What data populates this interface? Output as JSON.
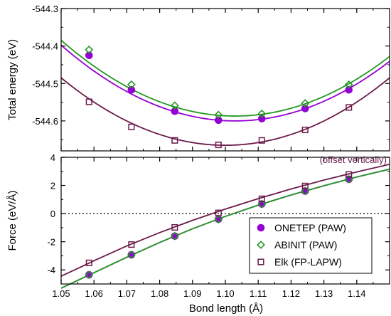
{
  "colors": {
    "onetep": "#9400d3",
    "abinit": "#229922",
    "elk": "#6b1a4a",
    "frame": "#000000",
    "zero_line": "#000000"
  },
  "chart_data": [
    {
      "type": "line",
      "panel": "top",
      "ylabel": "Total energy (eV)",
      "xlim": [
        1.05,
        1.15
      ],
      "ylim": [
        -544.68,
        -544.3
      ],
      "yticks": [
        -544.3,
        -544.4,
        -544.5,
        -544.6
      ],
      "ytick_labels": [
        "-544.3",
        "-544.4",
        "-544.5",
        "-544.6"
      ],
      "annotation": "(offset vertically)",
      "series": [
        {
          "key": "onetep",
          "marker": "filled-circle",
          "x": [
            1.0585,
            1.0714,
            1.0846,
            1.0979,
            1.1111,
            1.1243,
            1.1376
          ],
          "y": [
            -544.425,
            -544.517,
            -544.574,
            -544.598,
            -544.594,
            -544.567,
            -544.517
          ],
          "fit": {
            "min_x": 1.103,
            "min_y": -544.6,
            "k": 72
          }
        },
        {
          "key": "abinit",
          "marker": "open-diamond",
          "x": [
            1.0585,
            1.0714,
            1.0846,
            1.0979,
            1.1111,
            1.1243,
            1.1376
          ],
          "y": [
            -544.41,
            -544.503,
            -544.559,
            -544.584,
            -544.581,
            -544.553,
            -544.503
          ],
          "fit": {
            "min_x": 1.103,
            "min_y": -544.587,
            "k": 72
          }
        },
        {
          "key": "elk",
          "marker": "open-square",
          "x": [
            1.0585,
            1.0714,
            1.0846,
            1.0979,
            1.1111,
            1.1243,
            1.1376
          ],
          "y": [
            -544.549,
            -544.616,
            -544.652,
            -544.664,
            -544.652,
            -544.624,
            -544.564
          ],
          "fit": {
            "min_x": 1.1,
            "min_y": -544.665,
            "k": 72
          }
        }
      ]
    },
    {
      "type": "line",
      "panel": "bottom",
      "xlabel": "Bond length (Å)",
      "ylabel": "Force (eV/Å)",
      "xlim": [
        1.05,
        1.15
      ],
      "ylim": [
        -5,
        4
      ],
      "xticks": [
        1.05,
        1.06,
        1.07,
        1.08,
        1.09,
        1.1,
        1.11,
        1.12,
        1.13,
        1.14
      ],
      "xtick_labels": [
        "1.05",
        "1.06",
        "1.07",
        "1.08",
        "1.09",
        "1.10",
        "1.11",
        "1.12",
        "1.13",
        "1.14"
      ],
      "yticks": [
        4,
        2,
        0,
        -2,
        -4
      ],
      "ytick_labels": [
        "4",
        "2",
        "0",
        "-2",
        "-4"
      ],
      "zero_line": true,
      "legend_position": "lower-right",
      "series": [
        {
          "key": "onetep",
          "name": "ONETEP (PAW)",
          "marker": "filled-circle",
          "x": [
            1.0585,
            1.0714,
            1.0846,
            1.0979,
            1.1111,
            1.1243,
            1.1376
          ],
          "y": [
            -4.35,
            -2.93,
            -1.6,
            -0.4,
            0.68,
            1.6,
            2.44
          ],
          "curve": [
            [
              1.05,
              -5.3
            ],
            [
              1.06,
              -4.2
            ],
            [
              1.07,
              -3.1
            ],
            [
              1.08,
              -2.05
            ],
            [
              1.09,
              -1.08
            ],
            [
              1.1,
              -0.2
            ],
            [
              1.11,
              0.6
            ],
            [
              1.12,
              1.32
            ],
            [
              1.13,
              1.98
            ],
            [
              1.14,
              2.6
            ],
            [
              1.15,
              3.15
            ]
          ]
        },
        {
          "key": "abinit",
          "name": "ABINIT (PAW)",
          "marker": "open-diamond",
          "x": [
            1.0585,
            1.0714,
            1.0846,
            1.0979,
            1.1111,
            1.1243,
            1.1376
          ],
          "y": [
            -4.35,
            -2.93,
            -1.6,
            -0.4,
            0.68,
            1.6,
            2.44
          ],
          "curve": [
            [
              1.05,
              -5.3
            ],
            [
              1.06,
              -4.2
            ],
            [
              1.07,
              -3.1
            ],
            [
              1.08,
              -2.05
            ],
            [
              1.09,
              -1.08
            ],
            [
              1.1,
              -0.2
            ],
            [
              1.11,
              0.6
            ],
            [
              1.12,
              1.32
            ],
            [
              1.13,
              1.98
            ],
            [
              1.14,
              2.6
            ],
            [
              1.15,
              3.15
            ]
          ]
        },
        {
          "key": "elk",
          "name": "Elk (FP-LAPW)",
          "marker": "open-square",
          "x": [
            1.0585,
            1.0714,
            1.0846,
            1.0979,
            1.1111,
            1.1243,
            1.1376
          ],
          "y": [
            -3.5,
            -2.2,
            -0.98,
            0.05,
            1.05,
            1.96,
            2.78
          ],
          "curve": [
            [
              1.05,
              -4.45
            ],
            [
              1.06,
              -3.35
            ],
            [
              1.07,
              -2.3
            ],
            [
              1.08,
              -1.35
            ],
            [
              1.09,
              -0.48
            ],
            [
              1.1,
              0.32
            ],
            [
              1.11,
              1.06
            ],
            [
              1.12,
              1.75
            ],
            [
              1.13,
              2.38
            ],
            [
              1.14,
              2.96
            ],
            [
              1.15,
              3.5
            ]
          ]
        }
      ]
    }
  ]
}
